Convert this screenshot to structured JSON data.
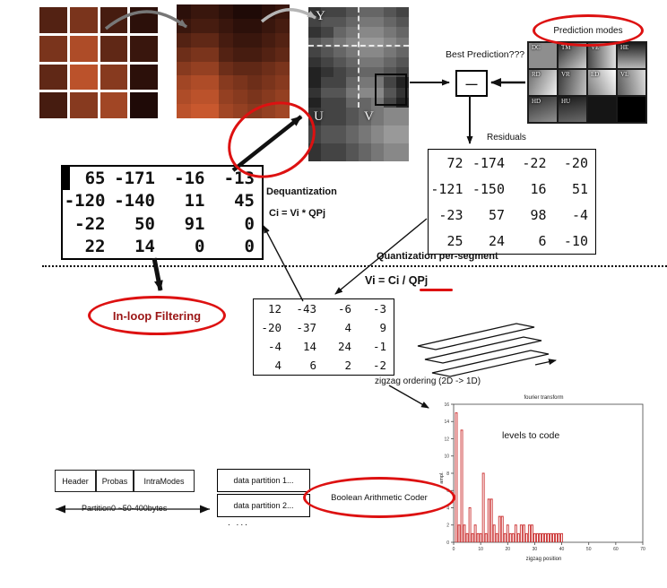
{
  "labels": {
    "y_plane": "Y",
    "u_plane": "U",
    "v_plane": "V",
    "prediction_modes": "Prediction modes",
    "best_prediction": "Best Prediction???",
    "minus_sign": "—",
    "residuals": "Residuals",
    "dequantization": "Dequantization",
    "dequant_formula": "Ci = Vi * QPj",
    "quantization_per_segment": "Quantization per-segment",
    "quant_formula": "Vi = Ci / QPj",
    "inloop_filtering": "In-loop Filtering",
    "zigzag_ordering": "zigzag ordering  (2D -> 1D)",
    "levels_to_code": "levels to code",
    "boolean_arithmetic_coder": "Boolean Arithmetic Coder",
    "partition0": "Partition0 ~50-400bytes",
    "more_partitions": ". ..."
  },
  "prediction_mode_cells": [
    "DC",
    "TM",
    "VE",
    "HE",
    "RD",
    "VR",
    "LD",
    "VL",
    "HD",
    "HU",
    "",
    ""
  ],
  "matrices": {
    "dequantized": [
      [
        "65",
        "-171",
        "-16",
        "-13"
      ],
      [
        "-120",
        "-140",
        "11",
        "45"
      ],
      [
        "-22",
        "50",
        "91",
        "0"
      ],
      [
        "22",
        "14",
        "0",
        "0"
      ]
    ],
    "residuals": [
      [
        "72",
        "-174",
        "-22",
        "-20"
      ],
      [
        "-121",
        "-150",
        "16",
        "51"
      ],
      [
        "-23",
        "57",
        "98",
        "-4"
      ],
      [
        "25",
        "24",
        "6",
        "-10"
      ]
    ],
    "quantized": [
      [
        "12",
        "-43",
        "-6",
        "-3"
      ],
      [
        "-20",
        "-37",
        "4",
        "9"
      ],
      [
        "-4",
        "14",
        "24",
        "-1"
      ],
      [
        "4",
        "6",
        "2",
        "-2"
      ]
    ]
  },
  "bitstream": {
    "blocks": [
      {
        "label": "Header",
        "color": "#44a04a"
      },
      {
        "label": "Probas",
        "color": "#1ede1e"
      },
      {
        "label": "IntraModes",
        "color": "#c257ef"
      }
    ],
    "partitions": [
      {
        "label": "data partition 1...",
        "color": "#f5a11d"
      },
      {
        "label": "data partition 2...",
        "color": "#f5a11d"
      }
    ]
  },
  "chart_data": {
    "type": "bar",
    "title": "fourier transform",
    "annotation": "levels to code",
    "xlabel": "zigzag position",
    "ylabel": "ampl.",
    "xlim": [
      0,
      70
    ],
    "ylim": [
      0,
      16
    ],
    "x_ticks": [
      0,
      10,
      20,
      30,
      40,
      50,
      60,
      70
    ],
    "y_ticks": [
      0,
      2,
      4,
      6,
      8,
      10,
      12,
      14,
      16
    ],
    "x": [
      1,
      2,
      3,
      4,
      5,
      6,
      7,
      8,
      9,
      10,
      11,
      12,
      13,
      14,
      15,
      16,
      17,
      18,
      19,
      20,
      21,
      22,
      23,
      24,
      25,
      26,
      27,
      28,
      29,
      30,
      31,
      32,
      33,
      34,
      35,
      36,
      37,
      38,
      39,
      40
    ],
    "values": [
      15,
      2,
      13,
      2,
      1,
      4,
      1,
      2,
      1,
      1,
      8,
      1,
      5,
      5,
      2,
      1,
      3,
      3,
      1,
      2,
      1,
      1,
      2,
      1,
      2,
      2,
      1,
      2,
      2,
      1,
      1,
      1,
      1,
      1,
      1,
      1,
      1,
      1,
      1,
      1
    ],
    "grid": false,
    "legend": false
  },
  "mosaics": {
    "photo": {
      "cols": 4,
      "palette": "red",
      "rows": [
        "5842",
        "8c63",
        "6d92",
        "49b1"
      ]
    },
    "pixelated": {
      "cols": 8,
      "palette": "red",
      "rows": [
        "23321123",
        "34432234",
        "56643345",
        "78854456",
        "9aa76678",
        "bcc98789",
        "cdda989a",
        "deeba9ab"
      ]
    },
    "y_plane": {
      "cols": 8,
      "palette": "gray",
      "rows": [
        "34456654",
        "45567765",
        "34678876",
        "56789987",
        "45678876",
        "34567765",
        "23456654",
        "24467742",
        "35578853",
        "24466742"
      ]
    },
    "u_plane": {
      "cols": 4,
      "palette": "gray",
      "rows": [
        "3445",
        "4556",
        "3445"
      ]
    },
    "v_plane": {
      "cols": 4,
      "palette": "gray",
      "rows": [
        "6788",
        "7899",
        "6788"
      ]
    }
  },
  "colors": {
    "highlight_red": "#dd1111",
    "arrow_black": "#111111",
    "partition_orange": "#f5a11d"
  }
}
